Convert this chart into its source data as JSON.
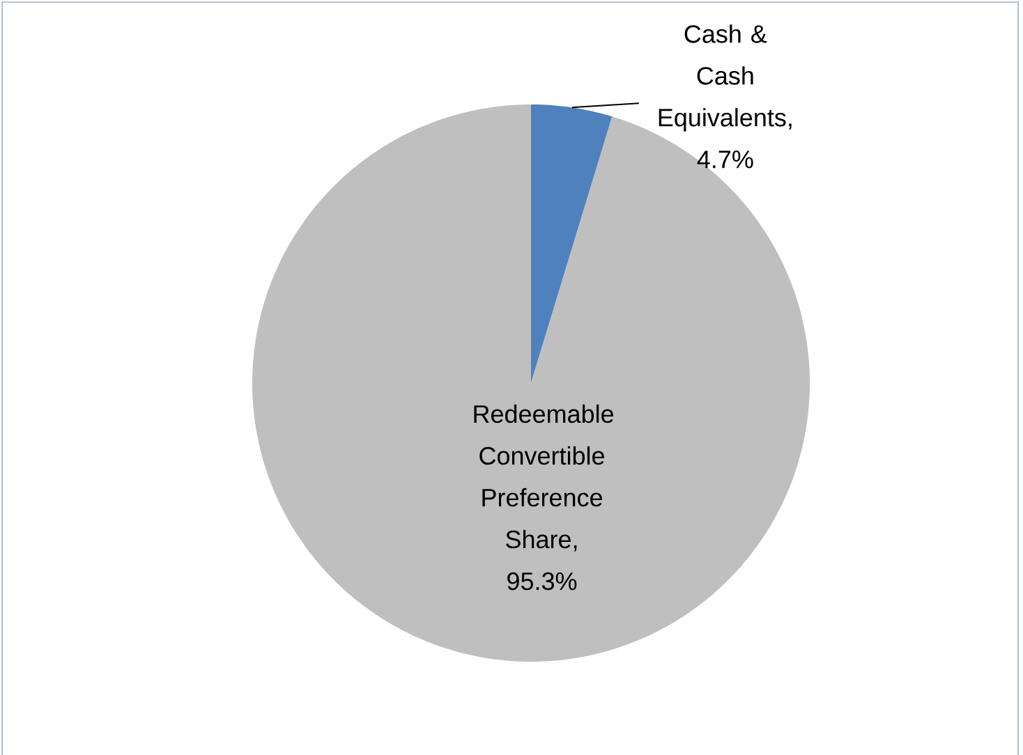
{
  "chart_data": {
    "type": "pie",
    "categories": [
      "Cash & Cash Equivalents",
      "Redeemable Convertible Preference Share"
    ],
    "values": [
      4.7,
      95.3
    ],
    "value_labels": [
      ", 4.7%",
      ", 95.3%"
    ],
    "colors": [
      "#4f81bd",
      "#bfbfbf"
    ]
  }
}
